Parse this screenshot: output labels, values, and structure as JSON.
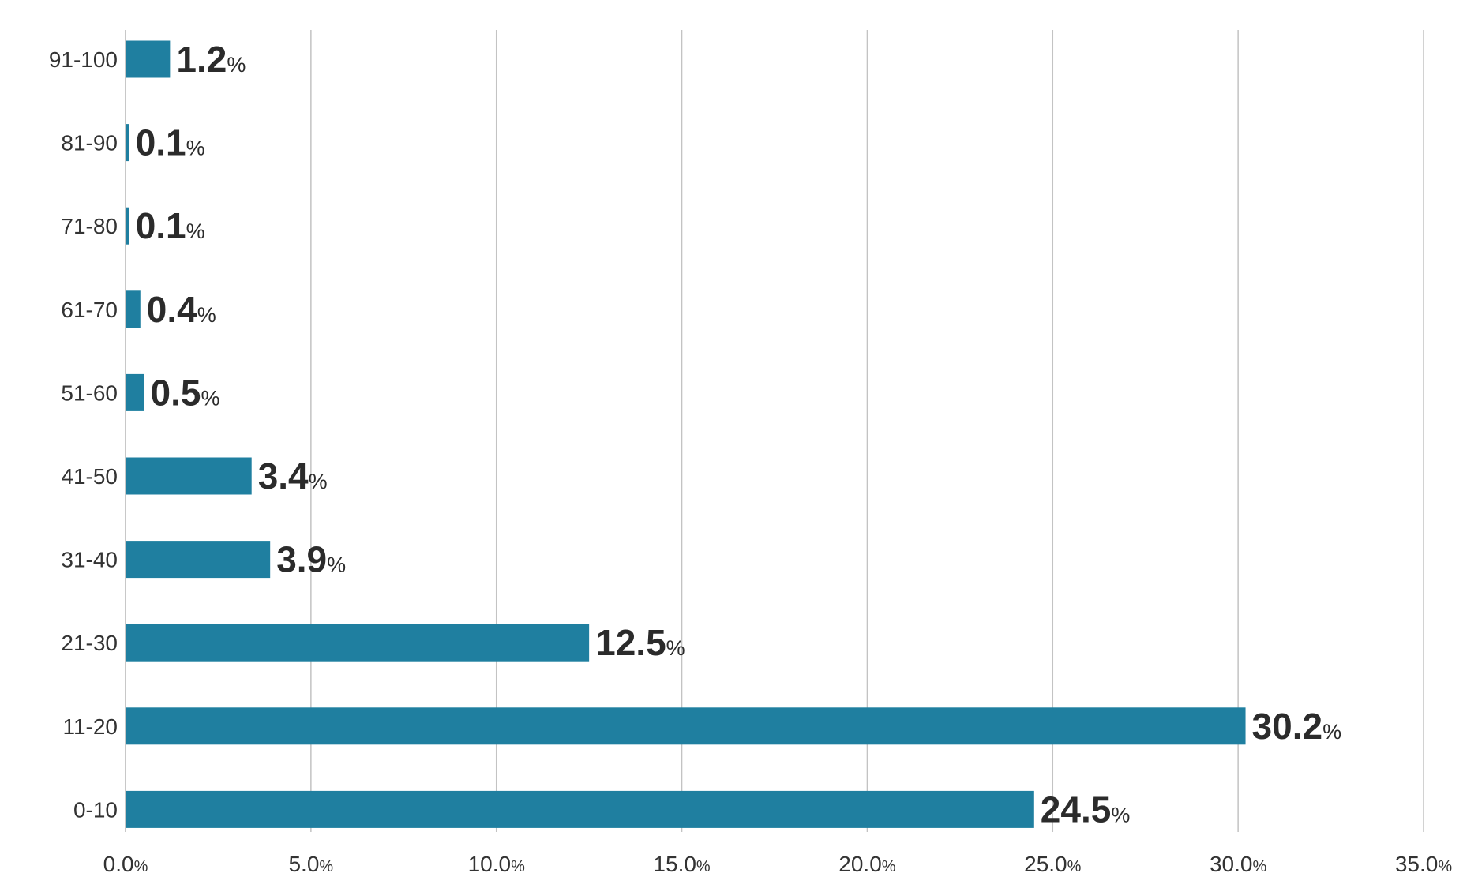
{
  "chart_data": {
    "type": "bar",
    "orientation": "horizontal",
    "categories": [
      "0-10",
      "11-20",
      "21-30",
      "31-40",
      "41-50",
      "51-60",
      "61-70",
      "71-80",
      "81-90",
      "91-100"
    ],
    "values": [
      24.5,
      30.2,
      12.5,
      3.9,
      3.4,
      0.5,
      0.4,
      0.1,
      0.1,
      1.2
    ],
    "value_labels": [
      "24.5",
      "30.2",
      "12.5",
      "3.9",
      "3.4",
      "0.5",
      "0.4",
      "0.1",
      "0.1",
      "1.2"
    ],
    "value_unit": "%",
    "xlim": [
      0,
      35
    ],
    "xticks": [
      "0.0",
      "5.0",
      "10.0",
      "15.0",
      "20.0",
      "25.0",
      "30.0",
      "35.0"
    ],
    "xtick_unit": "%",
    "grid": "vertical",
    "legend": "none",
    "bar_color": "#1f7fa0",
    "title": "",
    "xlabel": "",
    "ylabel": ""
  }
}
